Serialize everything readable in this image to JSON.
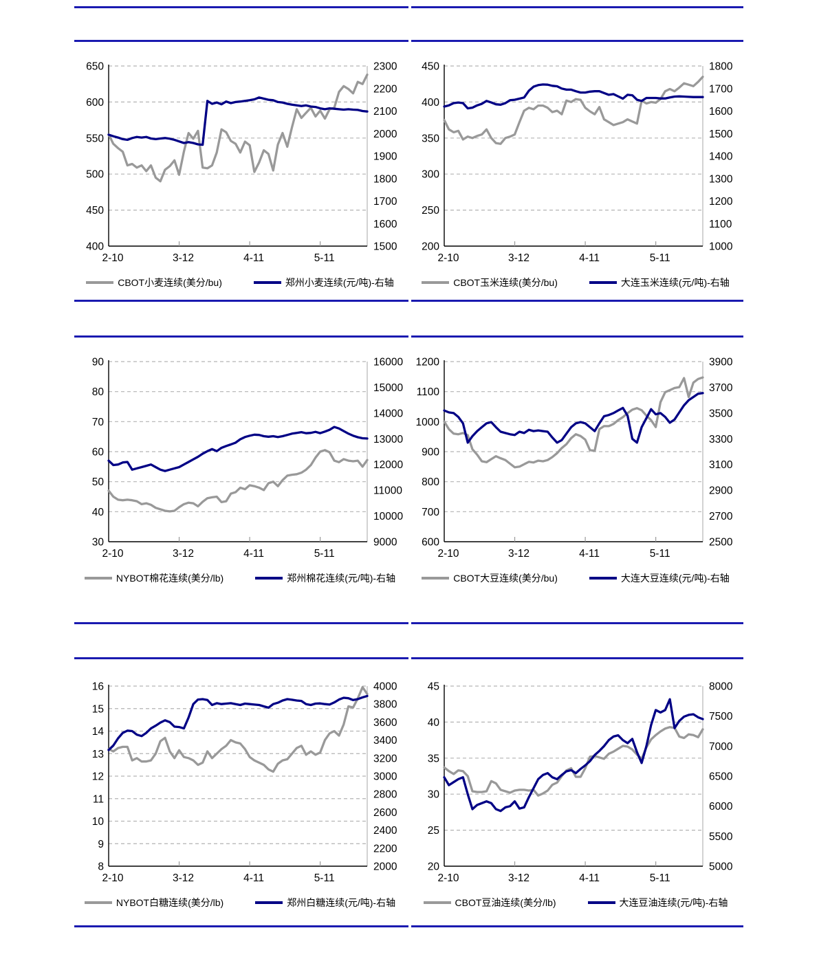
{
  "page": {
    "background": "#ffffff"
  },
  "colors": {
    "series_gray": "#999999",
    "series_navy": "#000085",
    "grid": "#b3b3b3",
    "axis": "#000000",
    "tick": "#999999",
    "separator": "#1a1ab0",
    "text": "#000000"
  },
  "x_axis": {
    "tick_labels": [
      "2-10",
      "3-12",
      "4-11",
      "5-11"
    ],
    "tick_days": [
      0,
      30,
      60,
      90
    ],
    "domain": [
      0,
      110
    ],
    "step_days": 2
  },
  "chart_data": [
    {
      "type": "line",
      "id": "wheat",
      "position": "row1-left",
      "left_axis": {
        "min": 400,
        "max": 650,
        "ticks": [
          400,
          450,
          500,
          550,
          600,
          650
        ]
      },
      "right_axis": {
        "min": 1500,
        "max": 2300,
        "ticks": [
          1500,
          1600,
          1700,
          1800,
          1900,
          2000,
          2100,
          2200,
          2300
        ]
      },
      "series": [
        {
          "label": "CBOT小麦连续(美分/bu)",
          "axis": "left",
          "color": "gray",
          "values": [
            555,
            542,
            536,
            531,
            512,
            514,
            509,
            512,
            504,
            512,
            495,
            490,
            506,
            511,
            519,
            499,
            531,
            557,
            549,
            560,
            509,
            508,
            512,
            530,
            562,
            558,
            546,
            542,
            530,
            545,
            540,
            503,
            516,
            533,
            528,
            505,
            541,
            557,
            538,
            565,
            590,
            578,
            585,
            592,
            580,
            588,
            577,
            590,
            592,
            614,
            622,
            618,
            612,
            628,
            625,
            638
          ]
        },
        {
          "label": "郑州小麦连续(元/吨)-右轴",
          "axis": "right",
          "color": "navy",
          "values": [
            1995,
            1988,
            1982,
            1975,
            1972,
            1980,
            1985,
            1982,
            1985,
            1978,
            1975,
            1978,
            1980,
            1977,
            1972,
            1965,
            1958,
            1962,
            1958,
            1952,
            1950,
            2145,
            2132,
            2138,
            2130,
            2142,
            2135,
            2140,
            2142,
            2145,
            2148,
            2152,
            2160,
            2155,
            2150,
            2148,
            2140,
            2138,
            2132,
            2128,
            2125,
            2122,
            2125,
            2120,
            2118,
            2112,
            2108,
            2112,
            2110,
            2108,
            2106,
            2108,
            2106,
            2105,
            2100,
            2098
          ]
        }
      ]
    },
    {
      "type": "line",
      "id": "corn",
      "position": "row1-right",
      "left_axis": {
        "min": 200,
        "max": 450,
        "ticks": [
          200,
          250,
          300,
          350,
          400,
          450
        ]
      },
      "right_axis": {
        "min": 1000,
        "max": 1800,
        "ticks": [
          1000,
          1100,
          1200,
          1300,
          1400,
          1500,
          1600,
          1700,
          1800
        ]
      },
      "series": [
        {
          "label": "CBOT玉米连续(美分/bu)",
          "axis": "left",
          "color": "gray",
          "values": [
            375,
            362,
            358,
            360,
            348,
            352,
            350,
            353,
            355,
            362,
            350,
            343,
            342,
            350,
            352,
            355,
            372,
            388,
            392,
            390,
            395,
            395,
            392,
            386,
            388,
            383,
            402,
            400,
            404,
            403,
            392,
            387,
            383,
            393,
            376,
            372,
            368,
            370,
            372,
            376,
            373,
            370,
            402,
            398,
            400,
            399,
            404,
            415,
            418,
            415,
            420,
            426,
            424,
            422,
            428,
            435
          ]
        },
        {
          "label": "大连玉米连续(元/吨)-右轴",
          "axis": "right",
          "color": "navy",
          "values": [
            1620,
            1625,
            1635,
            1638,
            1635,
            1612,
            1615,
            1625,
            1632,
            1645,
            1638,
            1630,
            1628,
            1635,
            1648,
            1650,
            1655,
            1660,
            1690,
            1708,
            1715,
            1718,
            1717,
            1712,
            1710,
            1700,
            1695,
            1695,
            1688,
            1682,
            1682,
            1686,
            1688,
            1688,
            1680,
            1672,
            1675,
            1665,
            1655,
            1672,
            1670,
            1650,
            1645,
            1658,
            1658,
            1658,
            1656,
            1656,
            1660,
            1664,
            1665,
            1664,
            1663,
            1662,
            1662,
            1662
          ]
        }
      ]
    },
    {
      "type": "line",
      "id": "cotton",
      "position": "row2-left",
      "left_axis": {
        "min": 30,
        "max": 90,
        "ticks": [
          30,
          40,
          50,
          60,
          70,
          80,
          90
        ]
      },
      "right_axis": {
        "min": 9000,
        "max": 16000,
        "ticks": [
          9000,
          10000,
          11000,
          12000,
          13000,
          14000,
          15000,
          16000
        ]
      },
      "series": [
        {
          "label": "NYBOT棉花连续(美分/lb)",
          "axis": "left",
          "color": "gray",
          "values": [
            47,
            45,
            44,
            43.8,
            44,
            43.8,
            43.5,
            42.5,
            42.8,
            42.3,
            41.3,
            40.8,
            40.3,
            40.1,
            40.3,
            41.5,
            42.5,
            43,
            42.8,
            41.8,
            43.3,
            44.5,
            44.8,
            45,
            43.2,
            43.5,
            46,
            46.5,
            48,
            47.5,
            48.8,
            48.5,
            48,
            47.2,
            49.5,
            50,
            48.5,
            50.5,
            52,
            52.3,
            52.5,
            53,
            54,
            55.5,
            58,
            60,
            60.5,
            59.8,
            57,
            56.5,
            57.5,
            57,
            56.8,
            57,
            55,
            57.2
          ]
        },
        {
          "label": "郑州棉花连续(元/吨)-右轴",
          "axis": "right",
          "color": "navy",
          "values": [
            12150,
            11980,
            12000,
            12080,
            12100,
            11800,
            11850,
            11900,
            11950,
            12000,
            11900,
            11800,
            11750,
            11800,
            11850,
            11900,
            12000,
            12100,
            12200,
            12300,
            12420,
            12520,
            12600,
            12520,
            12650,
            12720,
            12780,
            12850,
            12980,
            13070,
            13120,
            13160,
            13150,
            13100,
            13080,
            13100,
            13070,
            13100,
            13150,
            13200,
            13230,
            13260,
            13215,
            13230,
            13270,
            13220,
            13280,
            13350,
            13460,
            13400,
            13300,
            13200,
            13120,
            13060,
            13020,
            13010
          ]
        }
      ]
    },
    {
      "type": "line",
      "id": "soybean",
      "position": "row2-right",
      "left_axis": {
        "min": 600,
        "max": 1200,
        "ticks": [
          600,
          700,
          800,
          900,
          1000,
          1100,
          1200
        ]
      },
      "right_axis": {
        "min": 2500,
        "max": 3900,
        "ticks": [
          2500,
          2700,
          2900,
          3100,
          3300,
          3500,
          3700,
          3900
        ]
      },
      "series": [
        {
          "label": "CBOT大豆连续(美分/bu)",
          "axis": "left",
          "color": "gray",
          "values": [
            1000,
            975,
            960,
            958,
            962,
            955,
            908,
            890,
            868,
            865,
            875,
            885,
            878,
            872,
            860,
            848,
            850,
            858,
            866,
            864,
            870,
            868,
            872,
            882,
            895,
            912,
            925,
            945,
            958,
            952,
            940,
            905,
            903,
            975,
            985,
            985,
            992,
            1005,
            1015,
            1028,
            1040,
            1045,
            1038,
            1020,
            1005,
            982,
            1065,
            1098,
            1105,
            1112,
            1115,
            1145,
            1082,
            1130,
            1142,
            1147
          ]
        },
        {
          "label": "大连大豆连续(元/吨)-右轴",
          "axis": "right",
          "color": "navy",
          "values": [
            3520,
            3505,
            3500,
            3470,
            3420,
            3270,
            3320,
            3360,
            3390,
            3420,
            3430,
            3390,
            3355,
            3345,
            3335,
            3330,
            3355,
            3345,
            3370,
            3360,
            3365,
            3360,
            3355,
            3310,
            3270,
            3290,
            3340,
            3390,
            3420,
            3430,
            3420,
            3390,
            3360,
            3420,
            3475,
            3485,
            3500,
            3520,
            3540,
            3480,
            3300,
            3270,
            3390,
            3460,
            3530,
            3490,
            3500,
            3470,
            3425,
            3450,
            3505,
            3560,
            3600,
            3625,
            3650,
            3655
          ]
        }
      ]
    },
    {
      "type": "line",
      "id": "sugar",
      "position": "row3-left",
      "left_axis": {
        "min": 8,
        "max": 16,
        "ticks": [
          8,
          9,
          10,
          11,
          12,
          13,
          14,
          15,
          16
        ]
      },
      "right_axis": {
        "min": 2000,
        "max": 4000,
        "ticks": [
          2000,
          2200,
          2400,
          2600,
          2800,
          3000,
          3200,
          3400,
          3600,
          3800,
          4000
        ]
      },
      "series": [
        {
          "label": "NYBOT白糖连续(美分/lb)",
          "axis": "left",
          "color": "gray",
          "values": [
            13.2,
            13.1,
            13.25,
            13.3,
            13.3,
            12.7,
            12.8,
            12.65,
            12.65,
            12.7,
            13.0,
            13.55,
            13.7,
            13.1,
            12.8,
            13.15,
            12.85,
            12.8,
            12.7,
            12.5,
            12.6,
            13.1,
            12.8,
            13.0,
            13.2,
            13.35,
            13.6,
            13.5,
            13.45,
            13.2,
            12.85,
            12.7,
            12.6,
            12.5,
            12.3,
            12.2,
            12.55,
            12.7,
            12.75,
            13.0,
            13.25,
            13.35,
            12.95,
            13.1,
            12.95,
            13.05,
            13.6,
            13.9,
            14.0,
            13.8,
            14.3,
            15.1,
            15.05,
            15.45,
            15.95,
            15.65
          ]
        },
        {
          "label": "郑州白糖连续(元/吨)-右轴",
          "axis": "right",
          "color": "navy",
          "values": [
            3290,
            3340,
            3420,
            3480,
            3505,
            3500,
            3460,
            3445,
            3480,
            3530,
            3560,
            3595,
            3620,
            3600,
            3550,
            3545,
            3530,
            3650,
            3800,
            3850,
            3855,
            3845,
            3790,
            3810,
            3800,
            3805,
            3810,
            3800,
            3790,
            3805,
            3800,
            3795,
            3790,
            3775,
            3760,
            3800,
            3815,
            3840,
            3855,
            3848,
            3840,
            3835,
            3800,
            3790,
            3805,
            3808,
            3800,
            3795,
            3818,
            3850,
            3870,
            3865,
            3845,
            3855,
            3875,
            3890
          ]
        }
      ]
    },
    {
      "type": "line",
      "id": "soyoil",
      "position": "row3-right",
      "left_axis": {
        "min": 20,
        "max": 45,
        "ticks": [
          20,
          25,
          30,
          35,
          40,
          45
        ]
      },
      "right_axis": {
        "min": 5000,
        "max": 8000,
        "ticks": [
          5000,
          5500,
          6000,
          6500,
          7000,
          7500,
          8000
        ]
      },
      "series": [
        {
          "label": "CBOT豆油连续(美分/lb)",
          "axis": "left",
          "color": "gray",
          "values": [
            33.7,
            33.2,
            32.8,
            33.3,
            33.2,
            32.5,
            30.4,
            30.3,
            30.3,
            30.4,
            31.8,
            31.5,
            30.6,
            30.4,
            30.2,
            30.5,
            30.6,
            30.6,
            30.5,
            30.6,
            29.8,
            30.1,
            30.5,
            31.3,
            31.6,
            32.5,
            33.3,
            33.6,
            32.4,
            32.4,
            33.6,
            35.2,
            35.3,
            35.1,
            34.9,
            35.6,
            35.9,
            36.3,
            36.7,
            36.6,
            36.2,
            35.5,
            34.9,
            36.5,
            37.6,
            38.2,
            38.7,
            39.1,
            39.3,
            39.2,
            38.0,
            37.8,
            38.3,
            38.2,
            37.9,
            39.0
          ]
        },
        {
          "label": "大连豆油连续(元/吨)-右轴",
          "axis": "right",
          "color": "navy",
          "values": [
            6480,
            6350,
            6400,
            6450,
            6480,
            6200,
            5950,
            6020,
            6050,
            6080,
            6050,
            5950,
            5920,
            5980,
            6000,
            6080,
            5960,
            5980,
            6150,
            6300,
            6450,
            6520,
            6550,
            6480,
            6450,
            6520,
            6580,
            6600,
            6550,
            6620,
            6680,
            6750,
            6850,
            6920,
            7000,
            7100,
            7160,
            7180,
            7100,
            7050,
            7120,
            6900,
            6720,
            7000,
            7350,
            7600,
            7560,
            7600,
            7780,
            7300,
            7420,
            7490,
            7520,
            7530,
            7480,
            7450
          ]
        }
      ]
    }
  ]
}
